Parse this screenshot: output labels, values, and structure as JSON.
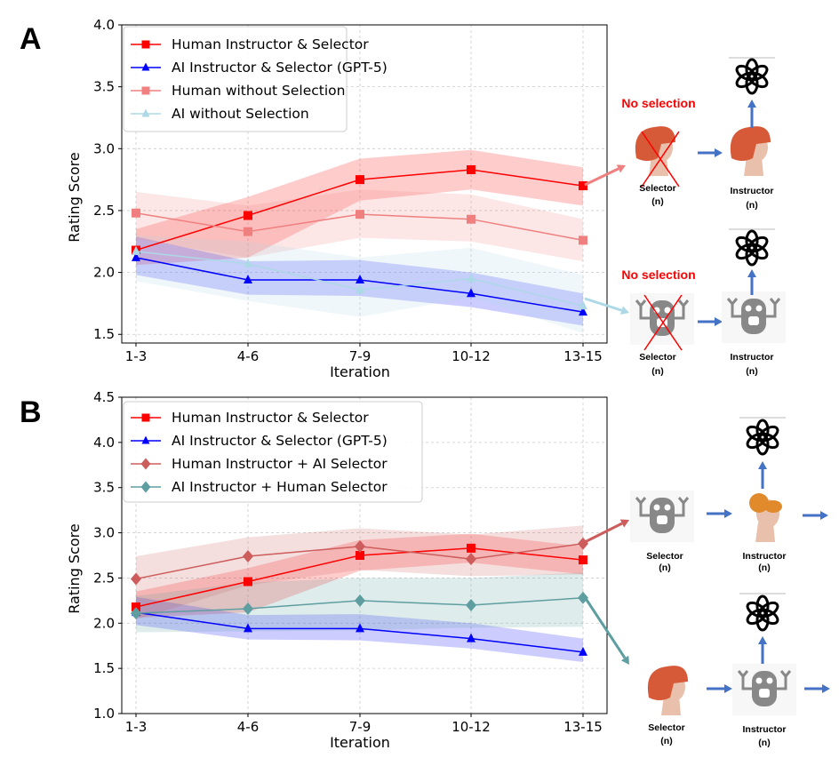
{
  "panels": [
    "A",
    "B"
  ],
  "chart_data": [
    {
      "type": "line",
      "panel": "A",
      "xlabel": "Iteration",
      "ylabel": "Rating Score",
      "categories": [
        "1-3",
        "4-6",
        "7-9",
        "10-12",
        "13-15"
      ],
      "ylim": [
        1.43,
        4.0
      ],
      "yticks": [
        "1.5",
        "2.0",
        "2.5",
        "3.0",
        "3.5",
        "4.0"
      ],
      "grid": true,
      "legend": "top-left",
      "series": [
        {
          "name": "Human Instructor & Selector",
          "color": "#ff0000",
          "marker": "square",
          "values": [
            2.18,
            2.46,
            2.75,
            2.83,
            2.7
          ],
          "ci_lower": [
            2.06,
            2.12,
            2.58,
            2.67,
            2.54
          ],
          "ci_upper": [
            2.35,
            2.61,
            2.92,
            2.99,
            2.85
          ]
        },
        {
          "name": "AI Instructor & Selector (GPT-5)",
          "color": "#0000ff",
          "marker": "triangle",
          "values": [
            2.12,
            1.94,
            1.94,
            1.83,
            1.68
          ],
          "ci_lower": [
            1.98,
            1.82,
            1.81,
            1.72,
            1.57
          ],
          "ci_upper": [
            2.29,
            2.09,
            2.1,
            2.0,
            1.83
          ]
        },
        {
          "name": "Human without Selection",
          "color": "#f08080",
          "marker": "square",
          "values": [
            2.48,
            2.33,
            2.47,
            2.43,
            2.26
          ],
          "ci_lower": [
            2.27,
            2.12,
            2.28,
            2.25,
            2.09
          ],
          "ci_upper": [
            2.65,
            2.54,
            2.67,
            2.63,
            2.43
          ]
        },
        {
          "name": "AI without Selection",
          "color": "#add8e6",
          "marker": "triangle",
          "values": [
            2.17,
            2.07,
            1.86,
            1.95,
            1.73
          ],
          "ci_lower": [
            1.93,
            1.77,
            1.64,
            1.8,
            1.51
          ],
          "ci_upper": [
            2.3,
            2.25,
            2.12,
            2.2,
            1.98
          ]
        }
      ]
    },
    {
      "type": "line",
      "panel": "B",
      "xlabel": "Iteration",
      "ylabel": "Rating Score",
      "categories": [
        "1-3",
        "4-6",
        "7-9",
        "10-12",
        "13-15"
      ],
      "ylim": [
        1.0,
        4.5
      ],
      "yticks": [
        "1.0",
        "1.5",
        "2.0",
        "2.5",
        "3.0",
        "3.5",
        "4.0",
        "4.5"
      ],
      "grid": true,
      "legend": "top-left",
      "series": [
        {
          "name": "Human Instructor & Selector",
          "color": "#ff0000",
          "marker": "square",
          "values": [
            2.18,
            2.46,
            2.75,
            2.83,
            2.7
          ],
          "ci_lower": [
            2.06,
            2.12,
            2.58,
            2.67,
            2.54
          ],
          "ci_upper": [
            2.35,
            2.61,
            2.92,
            2.99,
            2.85
          ]
        },
        {
          "name": "AI Instructor & Selector (GPT-5)",
          "color": "#0000ff",
          "marker": "triangle",
          "values": [
            2.12,
            1.94,
            1.94,
            1.83,
            1.68
          ],
          "ci_lower": [
            1.98,
            1.82,
            1.81,
            1.72,
            1.57
          ],
          "ci_upper": [
            2.29,
            2.09,
            2.1,
            2.0,
            1.83
          ]
        },
        {
          "name": "Human Instructor + AI Selector",
          "color": "#cd5c5c",
          "marker": "diamond",
          "values": [
            2.49,
            2.74,
            2.85,
            2.71,
            2.88
          ],
          "ci_lower": [
            2.04,
            2.42,
            2.59,
            2.52,
            2.54
          ],
          "ci_upper": [
            2.74,
            2.95,
            3.05,
            2.98,
            3.08
          ]
        },
        {
          "name": "AI Instructor + Human Selector",
          "color": "#5f9ea0",
          "marker": "diamond",
          "values": [
            2.11,
            2.16,
            2.25,
            2.2,
            2.28
          ],
          "ci_lower": [
            1.9,
            1.91,
            1.92,
            1.95,
            1.96
          ],
          "ci_upper": [
            2.3,
            2.45,
            2.5,
            2.5,
            2.56
          ]
        }
      ]
    }
  ],
  "diagram": {
    "no_selection": "No selection",
    "selector": "Selector",
    "instructor": "Instructor",
    "count": "(n)",
    "arrow_color": "#4472c4"
  }
}
